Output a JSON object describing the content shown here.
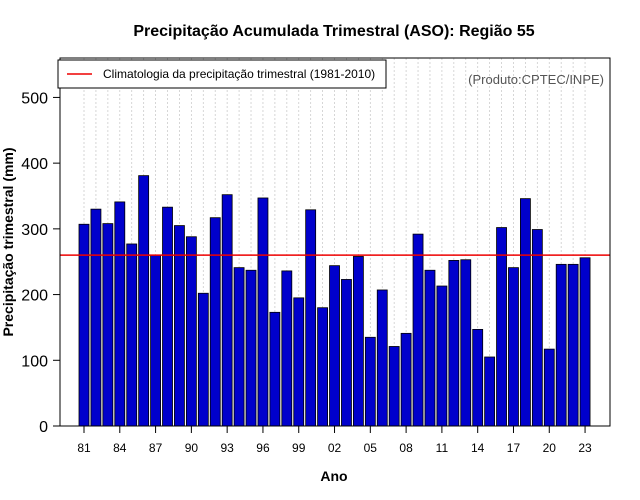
{
  "colors": {
    "bar_fill": "#0000cc",
    "bar_stroke": "#000000",
    "climatology_line": "#ee0000",
    "grid": "#cccccc",
    "credit_text": "#555555"
  },
  "chart_data": {
    "type": "bar",
    "title": "Precipitação Acumulada Trimestral (ASO): Região 55",
    "xlabel": "Ano",
    "ylabel": "Precipitação trimestral (mm)",
    "ylim": [
      0,
      560
    ],
    "yticks": [
      0,
      100,
      200,
      300,
      400,
      500
    ],
    "credit": "(Produto:CPTEC/INPE)",
    "legend": {
      "position": "top-left",
      "label": "Climatologia da precipitação trimestral (1981-2010)"
    },
    "climatology": 260,
    "years": [
      1981,
      1982,
      1983,
      1984,
      1985,
      1986,
      1987,
      1988,
      1989,
      1990,
      1991,
      1992,
      1993,
      1994,
      1995,
      1996,
      1997,
      1998,
      1999,
      2000,
      2001,
      2002,
      2003,
      2004,
      2005,
      2006,
      2007,
      2008,
      2009,
      2010,
      2011,
      2012,
      2013,
      2014,
      2015,
      2016,
      2017,
      2018,
      2019,
      2020,
      2021,
      2022,
      2023
    ],
    "values": [
      307,
      330,
      308,
      341,
      277,
      381,
      260,
      333,
      305,
      288,
      202,
      317,
      352,
      241,
      237,
      347,
      173,
      236,
      195,
      329,
      180,
      244,
      223,
      258,
      135,
      207,
      121,
      141,
      292,
      237,
      213,
      252,
      253,
      147,
      105,
      302,
      241,
      346,
      299,
      117,
      246,
      246,
      256
    ],
    "xtick_labels": [
      {
        "index": 0,
        "label": "81"
      },
      {
        "index": 3,
        "label": "84"
      },
      {
        "index": 6,
        "label": "87"
      },
      {
        "index": 9,
        "label": "90"
      },
      {
        "index": 12,
        "label": "93"
      },
      {
        "index": 15,
        "label": "96"
      },
      {
        "index": 18,
        "label": "99"
      },
      {
        "index": 21,
        "label": "02"
      },
      {
        "index": 24,
        "label": "05"
      },
      {
        "index": 27,
        "label": "08"
      },
      {
        "index": 30,
        "label": "11"
      },
      {
        "index": 33,
        "label": "14"
      },
      {
        "index": 36,
        "label": "17"
      },
      {
        "index": 39,
        "label": "20"
      },
      {
        "index": 42,
        "label": "23"
      }
    ]
  }
}
